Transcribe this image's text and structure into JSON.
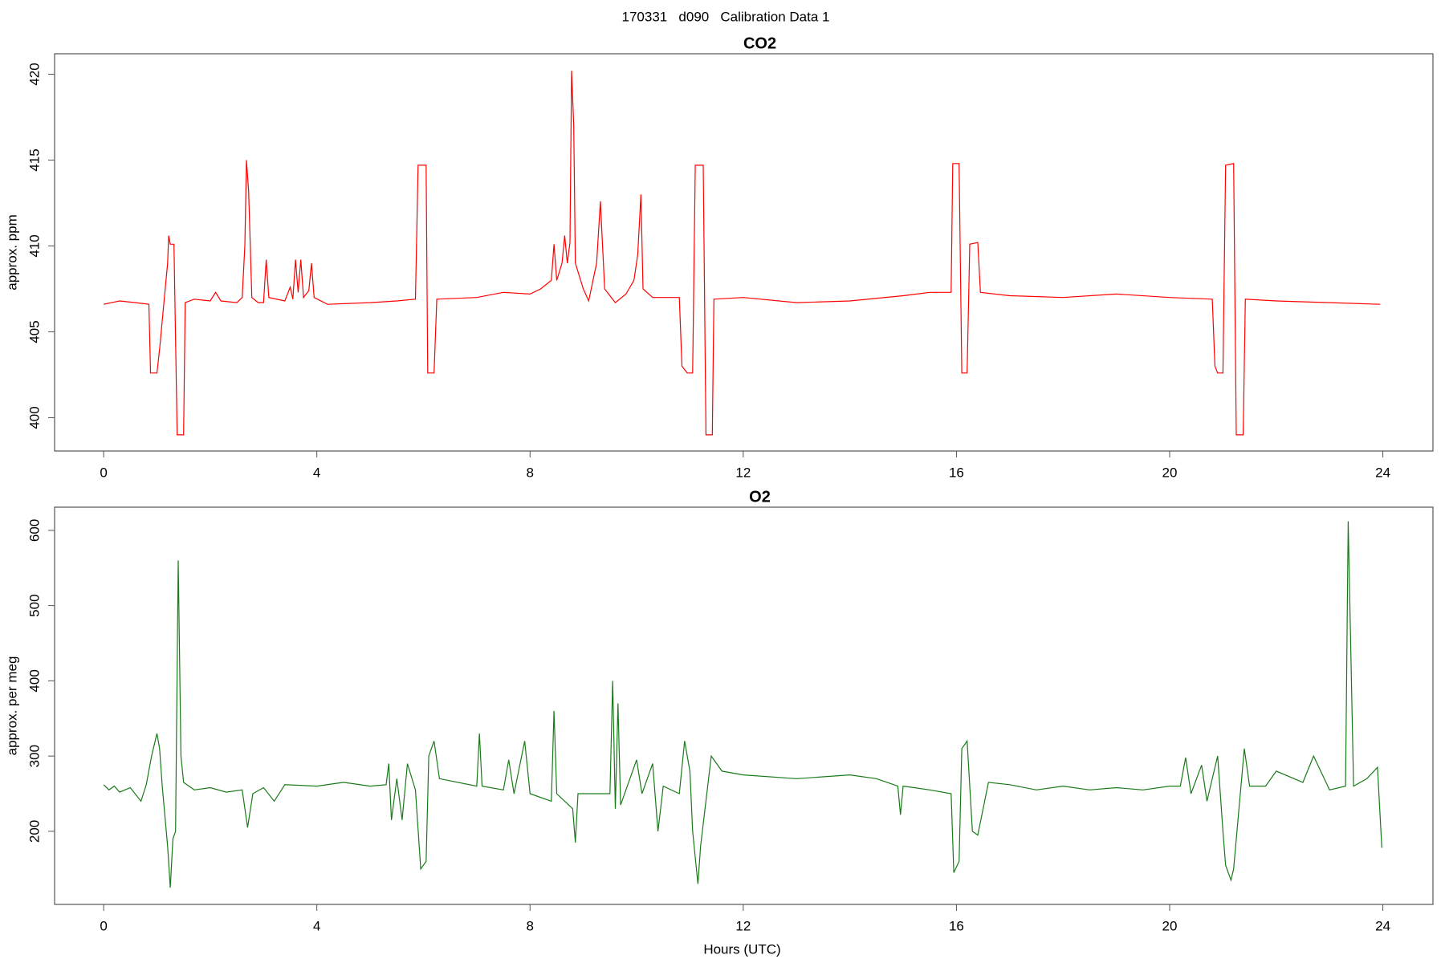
{
  "title": "170331   d090   Calibration Data 1",
  "chart_data": [
    {
      "type": "line",
      "title": "CO2",
      "y_label": "approx. ppm",
      "color": "#ff0000",
      "xlim": [
        -0.92,
        24.94
      ],
      "ylim": [
        398.06,
        421.19
      ],
      "xticks": [
        0,
        4,
        8,
        12,
        16,
        20,
        24
      ],
      "yticks": [
        400,
        405,
        410,
        415,
        420
      ],
      "x": [
        0,
        0.3,
        0.6,
        0.85,
        0.88,
        1.0,
        1.05,
        1.2,
        1.22,
        1.25,
        1.32,
        1.38,
        1.5,
        1.53,
        1.7,
        2.0,
        2.1,
        2.2,
        2.5,
        2.6,
        2.65,
        2.68,
        2.72,
        2.78,
        2.9,
        3.0,
        3.05,
        3.1,
        3.4,
        3.5,
        3.55,
        3.6,
        3.65,
        3.7,
        3.75,
        3.85,
        3.9,
        3.95,
        4.2,
        5.0,
        5.5,
        5.85,
        5.9,
        6.05,
        6.08,
        6.2,
        6.25,
        7,
        7.5,
        8,
        8.2,
        8.4,
        8.45,
        8.5,
        8.6,
        8.65,
        8.7,
        8.75,
        8.78,
        8.82,
        8.85,
        9.0,
        9.1,
        9.25,
        9.32,
        9.4,
        9.6,
        9.8,
        9.95,
        10.02,
        10.08,
        10.12,
        10.3,
        10.8,
        10.85,
        10.95,
        11.05,
        11.1,
        11.25,
        11.3,
        11.42,
        11.45,
        12,
        13,
        14,
        15,
        15.5,
        15.9,
        15.93,
        16.05,
        16.1,
        16.2,
        16.25,
        16.4,
        16.45,
        17,
        18,
        19,
        20,
        20.8,
        20.85,
        20.9,
        21.0,
        21.05,
        21.2,
        21.25,
        21.38,
        21.42,
        22,
        23,
        23.95
      ],
      "values": [
        406.6,
        406.8,
        406.7,
        406.6,
        402.6,
        402.6,
        404,
        409,
        410.6,
        410.1,
        410.1,
        399,
        399,
        406.7,
        406.9,
        406.8,
        407.3,
        406.8,
        406.7,
        407,
        410,
        415,
        413.2,
        407,
        406.7,
        406.7,
        409.2,
        407,
        406.8,
        407.6,
        406.9,
        409.2,
        407.3,
        409.2,
        407,
        407.4,
        409,
        407,
        406.6,
        406.7,
        406.8,
        406.9,
        414.7,
        414.7,
        402.6,
        402.6,
        406.9,
        407,
        407.3,
        407.2,
        407.5,
        408,
        410.1,
        408,
        409,
        410.6,
        409,
        410.2,
        420.2,
        417,
        409,
        407.5,
        406.8,
        409,
        412.6,
        407.5,
        406.7,
        407.2,
        408,
        409.5,
        413,
        407.5,
        407,
        407,
        403,
        402.6,
        402.6,
        414.7,
        414.7,
        399,
        399,
        406.9,
        407,
        406.7,
        406.8,
        407.1,
        407.3,
        407.3,
        414.8,
        414.8,
        402.6,
        402.6,
        410.1,
        410.2,
        407.3,
        407.1,
        407,
        407.2,
        407,
        406.9,
        403,
        402.6,
        402.6,
        414.7,
        414.8,
        399,
        399,
        406.9,
        406.8,
        406.7,
        406.6
      ]
    },
    {
      "type": "line",
      "title": "O2",
      "y_label": "approx. per meg",
      "x_label": "Hours (UTC)",
      "color": "#1a7a1a",
      "xlim": [
        -0.92,
        24.94
      ],
      "ylim": [
        102.8,
        630.8
      ],
      "xticks": [
        0,
        4,
        8,
        12,
        16,
        20,
        24
      ],
      "yticks": [
        200,
        300,
        400,
        500,
        600
      ],
      "x": [
        0,
        0.1,
        0.2,
        0.3,
        0.5,
        0.7,
        0.8,
        0.9,
        1.0,
        1.05,
        1.1,
        1.2,
        1.25,
        1.3,
        1.35,
        1.4,
        1.45,
        1.5,
        1.7,
        2,
        2.3,
        2.6,
        2.7,
        2.8,
        3,
        3.2,
        3.4,
        4,
        4.5,
        5,
        5.3,
        5.35,
        5.4,
        5.5,
        5.6,
        5.7,
        5.85,
        5.95,
        6.05,
        6.1,
        6.2,
        6.3,
        7,
        7.05,
        7.1,
        7.5,
        7.6,
        7.7,
        7.9,
        8.0,
        8.4,
        8.45,
        8.5,
        8.8,
        8.85,
        8.9,
        9.5,
        9.55,
        9.6,
        9.65,
        9.7,
        10,
        10.1,
        10.3,
        10.4,
        10.5,
        10.8,
        10.9,
        11,
        11.05,
        11.15,
        11.2,
        11.4,
        11.6,
        12,
        13,
        14,
        14.5,
        14.9,
        14.95,
        15,
        15.5,
        15.9,
        15.95,
        16.05,
        16.1,
        16.2,
        16.3,
        16.4,
        16.6,
        17,
        17.5,
        18,
        18.5,
        19,
        19.5,
        20,
        20.2,
        20.3,
        20.4,
        20.6,
        20.7,
        20.8,
        20.9,
        21,
        21.05,
        21.15,
        21.2,
        21.4,
        21.5,
        21.8,
        22,
        22.5,
        22.7,
        23,
        23.3,
        23.35,
        23.45,
        23.7,
        23.9,
        23.98
      ],
      "values": [
        262,
        255,
        260,
        252,
        258,
        240,
        262,
        300,
        330,
        310,
        260,
        180,
        125,
        190,
        200,
        560,
        300,
        265,
        255,
        258,
        252,
        255,
        205,
        250,
        258,
        240,
        262,
        260,
        265,
        260,
        262,
        290,
        215,
        270,
        215,
        290,
        255,
        150,
        160,
        300,
        320,
        270,
        260,
        330,
        260,
        255,
        295,
        250,
        320,
        250,
        240,
        360,
        250,
        230,
        185,
        250,
        250,
        400,
        230,
        370,
        235,
        295,
        250,
        290,
        200,
        260,
        250,
        320,
        280,
        200,
        130,
        180,
        300,
        280,
        275,
        270,
        275,
        270,
        260,
        222,
        260,
        255,
        250,
        145,
        160,
        310,
        320,
        200,
        195,
        265,
        262,
        255,
        260,
        255,
        258,
        255,
        260,
        260,
        298,
        250,
        288,
        240,
        270,
        300,
        200,
        155,
        135,
        150,
        310,
        260,
        260,
        280,
        265,
        300,
        255,
        260,
        612,
        260,
        270,
        285,
        178
      ]
    }
  ]
}
